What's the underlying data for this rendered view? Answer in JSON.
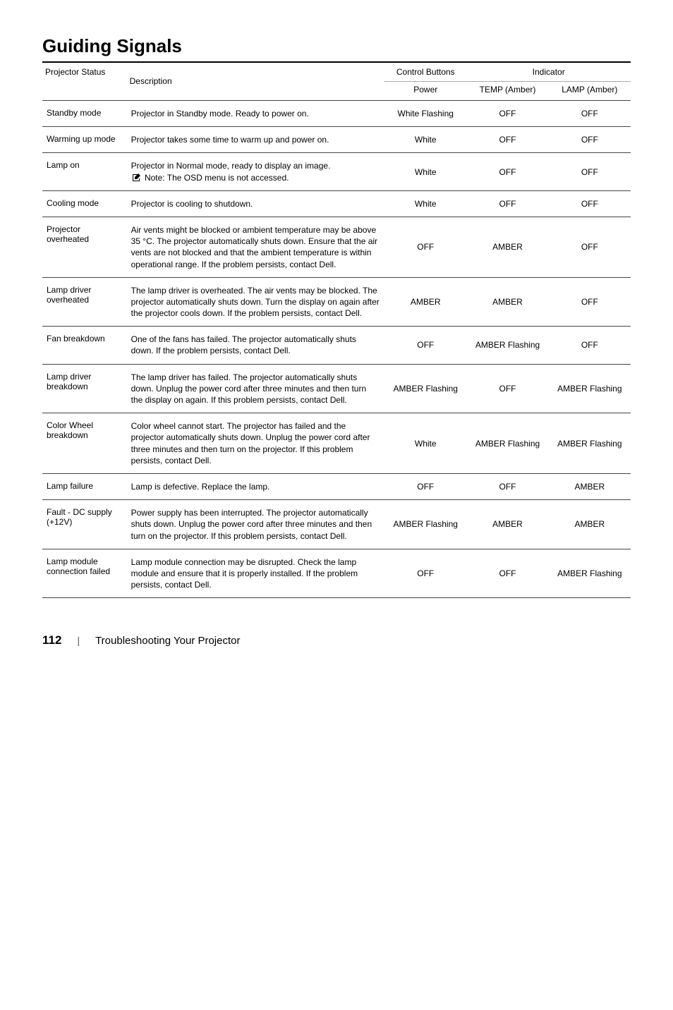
{
  "title": "Guiding Signals",
  "headers": {
    "status": "Projector Status",
    "description": "Description",
    "control_buttons": "Control Buttons",
    "indicator": "Indicator",
    "power": "Power",
    "temp": "TEMP (Amber)",
    "lamp": "LAMP (Amber)"
  },
  "rows": [
    {
      "status": "Standby mode",
      "desc": "Projector in Standby mode. Ready to power on.",
      "power": "White Flashing",
      "temp": "OFF",
      "lamp": "OFF"
    },
    {
      "status": "Warming up mode",
      "desc": "Projector takes some time to warm up and power on.",
      "power": "White",
      "temp": "OFF",
      "lamp": "OFF"
    },
    {
      "status": "Lamp on",
      "desc": "Projector in Normal mode, ready to display an image.",
      "note": "Note: The OSD menu is not accessed.",
      "power": "White",
      "temp": "OFF",
      "lamp": "OFF"
    },
    {
      "status": "Cooling mode",
      "desc": "Projector is cooling to shutdown.",
      "power": "White",
      "temp": "OFF",
      "lamp": "OFF"
    },
    {
      "status": "Projector overheated",
      "desc": "Air vents might be blocked or ambient temperature may be above 35 °C. The projector automatically shuts down. Ensure that the air vents are not blocked and that the ambient temperature is within operational range. If the problem persists, contact Dell.",
      "power": "OFF",
      "temp": "AMBER",
      "lamp": "OFF"
    },
    {
      "status": "Lamp driver overheated",
      "desc": "The lamp driver is overheated. The air vents may be blocked. The projector automatically shuts down. Turn the display on again after the projector cools down. If the problem persists, contact Dell.",
      "power": "AMBER",
      "temp": "AMBER",
      "lamp": "OFF"
    },
    {
      "status": "Fan breakdown",
      "desc": "One of the fans has failed. The projector automatically shuts down. If the problem persists, contact Dell.",
      "power": "OFF",
      "temp": "AMBER Flashing",
      "lamp": "OFF"
    },
    {
      "status": "Lamp driver breakdown",
      "desc": "The lamp driver has failed. The projector automatically shuts down. Unplug the power cord after three minutes and then turn the display on again. If this problem persists, contact Dell.",
      "power": "AMBER Flashing",
      "temp": "OFF",
      "lamp": "AMBER Flashing"
    },
    {
      "status": "Color Wheel breakdown",
      "desc": "Color wheel cannot start. The projector has failed and the projector automatically shuts down. Unplug the power cord after three minutes and then turn on the projector. If this problem persists, contact Dell.",
      "power": "White",
      "temp": "AMBER Flashing",
      "lamp": "AMBER Flashing"
    },
    {
      "status": "Lamp failure",
      "desc": "Lamp is defective. Replace the lamp.",
      "power": "OFF",
      "temp": "OFF",
      "lamp": "AMBER"
    },
    {
      "status": "Fault - DC supply (+12V)",
      "desc": "Power supply has been interrupted. The projector automatically shuts down. Unplug the power cord after three minutes and then turn on the projector. If this problem persists, contact Dell.",
      "power": "AMBER Flashing",
      "temp": "AMBER",
      "lamp": "AMBER"
    },
    {
      "status": "Lamp module connection failed",
      "desc": "Lamp module connection may be disrupted. Check the lamp module and ensure that it is properly installed. If the problem persists, contact Dell.",
      "power": "OFF",
      "temp": "OFF",
      "lamp": "AMBER Flashing"
    }
  ],
  "footer": {
    "page_number": "112",
    "section": "Troubleshooting Your Projector"
  }
}
